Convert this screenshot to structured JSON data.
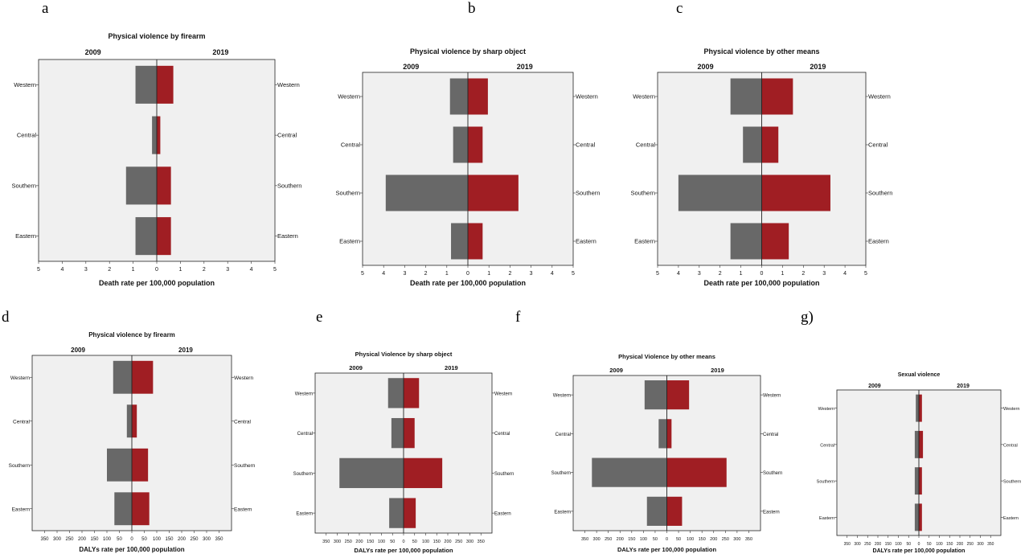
{
  "panel_letters": [
    "a",
    "b",
    "c",
    "d",
    "e",
    "f",
    "g)"
  ],
  "colors": {
    "left_bar": "#686868",
    "right_bar": "#a01e23",
    "plot_bg": "#f0f0f0",
    "frame": "#222222"
  },
  "chart_data": [
    {
      "type": "bar",
      "orientation": "horizontal-butterfly",
      "title": "Physical violence by firearm",
      "left_label": "2009",
      "right_label": "2019",
      "xlabel": "Death rate per 100,000 population",
      "categories": [
        "Western",
        "Central",
        "Southern",
        "Eastern"
      ],
      "series": [
        {
          "name": "2009",
          "values": [
            0.9,
            0.2,
            1.3,
            0.9
          ]
        },
        {
          "name": "2019",
          "values": [
            0.7,
            0.15,
            0.6,
            0.6
          ]
        }
      ],
      "xlim": [
        -5,
        5
      ],
      "ticks": [
        5,
        4,
        3,
        2,
        1,
        0,
        1,
        2,
        3,
        4,
        5
      ]
    },
    {
      "type": "bar",
      "orientation": "horizontal-butterfly",
      "title": "Physical violence by sharp object",
      "left_label": "2009",
      "right_label": "2019",
      "xlabel": "Death rate per 100,000 population",
      "categories": [
        "Western",
        "Central",
        "Southern",
        "Eastern"
      ],
      "series": [
        {
          "name": "2009",
          "values": [
            0.85,
            0.7,
            3.9,
            0.8
          ]
        },
        {
          "name": "2019",
          "values": [
            0.95,
            0.7,
            2.4,
            0.7
          ]
        }
      ],
      "xlim": [
        -5,
        5
      ],
      "ticks": [
        5,
        4,
        3,
        2,
        1,
        0,
        1,
        2,
        3,
        4,
        5
      ]
    },
    {
      "type": "bar",
      "orientation": "horizontal-butterfly",
      "title": "Physical violence by other means",
      "left_label": "2009",
      "right_label": "2019",
      "xlabel": "Death rate per 100,000 population",
      "categories": [
        "Western",
        "Central",
        "Southern",
        "Eastern"
      ],
      "series": [
        {
          "name": "2009",
          "values": [
            1.5,
            0.9,
            4.0,
            1.5
          ]
        },
        {
          "name": "2019",
          "values": [
            1.5,
            0.8,
            3.3,
            1.3
          ]
        }
      ],
      "xlim": [
        -5,
        5
      ],
      "ticks": [
        5,
        4,
        3,
        2,
        1,
        0,
        1,
        2,
        3,
        4,
        5
      ]
    },
    {
      "type": "bar",
      "orientation": "horizontal-butterfly",
      "title": "Physical violence by firearm",
      "left_label": "2009",
      "right_label": "2019",
      "xlabel": "DALYs rate per 100,000 population",
      "categories": [
        "Western",
        "Central",
        "Southern",
        "Eastern"
      ],
      "series": [
        {
          "name": "2009",
          "values": [
            75,
            20,
            100,
            70
          ]
        },
        {
          "name": "2019",
          "values": [
            85,
            20,
            65,
            70
          ]
        }
      ],
      "xlim": [
        -400,
        400
      ],
      "ticks": [
        350,
        300,
        250,
        200,
        150,
        100,
        50,
        0,
        50,
        100,
        150,
        200,
        250,
        300,
        350
      ]
    },
    {
      "type": "bar",
      "orientation": "horizontal-butterfly",
      "title": "Physical Violence by sharp object",
      "left_label": "2009",
      "right_label": "2019",
      "xlabel": "DALYs rate per 100,000 population",
      "categories": [
        "Western",
        "Central",
        "Southern",
        "Eastern"
      ],
      "series": [
        {
          "name": "2009",
          "values": [
            70,
            55,
            290,
            65
          ]
        },
        {
          "name": "2019",
          "values": [
            70,
            50,
            175,
            55
          ]
        }
      ],
      "xlim": [
        -400,
        400
      ],
      "ticks": [
        350,
        300,
        250,
        200,
        150,
        100,
        50,
        0,
        50,
        100,
        150,
        200,
        250,
        300,
        350
      ]
    },
    {
      "type": "bar",
      "orientation": "horizontal-butterfly",
      "title": "Physical Violence by other means",
      "left_label": "2009",
      "right_label": "2019",
      "xlabel": "DALYs rate per 100,000 population",
      "categories": [
        "Western",
        "Central",
        "Southern",
        "Eastern"
      ],
      "series": [
        {
          "name": "2009",
          "values": [
            95,
            35,
            320,
            85
          ]
        },
        {
          "name": "2019",
          "values": [
            95,
            20,
            255,
            65
          ]
        }
      ],
      "xlim": [
        -400,
        400
      ],
      "ticks": [
        350,
        300,
        250,
        200,
        150,
        100,
        50,
        0,
        50,
        100,
        150,
        200,
        250,
        300,
        350
      ]
    },
    {
      "type": "bar",
      "orientation": "horizontal-butterfly",
      "title": "Sexual violence",
      "left_label": "2009",
      "right_label": "2019",
      "xlabel": "DALYs rate per 100,000 population",
      "categories": [
        "Western",
        "Central",
        "Southern",
        "Eastern"
      ],
      "series": [
        {
          "name": "2009",
          "values": [
            15,
            20,
            20,
            20
          ]
        },
        {
          "name": "2019",
          "values": [
            15,
            20,
            15,
            15
          ]
        }
      ],
      "xlim": [
        -400,
        400
      ],
      "ticks": [
        350,
        300,
        250,
        200,
        150,
        100,
        50,
        0,
        50,
        100,
        150,
        200,
        250,
        300,
        350
      ]
    }
  ]
}
